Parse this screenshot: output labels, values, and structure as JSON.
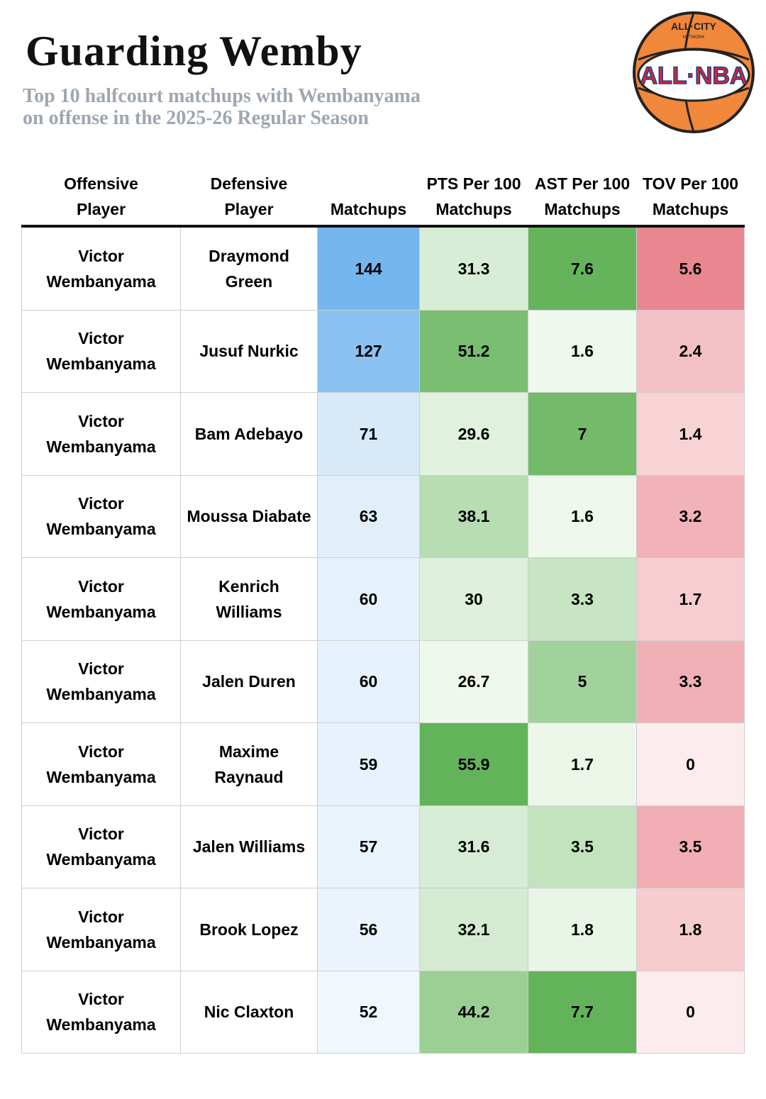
{
  "header": {
    "title": "Guarding Wemby",
    "subtitle": [
      "Top 10 halfcourt matchups with Wembanyama",
      "on offense in the 2025-26 Regular Season"
    ]
  },
  "logo": {
    "top": "ALL·CITY",
    "small": "NETWORK",
    "main": "ALL·NBA"
  },
  "table": {
    "columns": [
      [
        "Offensive",
        "Player"
      ],
      [
        "Defensive",
        "Player"
      ],
      [
        "Matchups"
      ],
      [
        "PTS Per 100",
        "Matchups"
      ],
      [
        "AST Per 100",
        "Matchups"
      ],
      [
        "TOV Per 100",
        "Matchups"
      ]
    ],
    "rows": [
      [
        "Victor Wembanyama",
        "Draymond Green",
        144,
        31.3,
        7.6,
        5.6
      ],
      [
        "Victor Wembanyama",
        "Jusuf Nurkic",
        127,
        51.2,
        1.6,
        2.4
      ],
      [
        "Victor Wembanyama",
        "Bam Adebayo",
        71,
        29.6,
        7,
        1.4
      ],
      [
        "Victor Wembanyama",
        "Moussa Diabate",
        63,
        38.1,
        1.6,
        3.2
      ],
      [
        "Victor Wembanyama",
        "Kenrich Williams",
        60,
        30,
        3.3,
        1.7
      ],
      [
        "Victor Wembanyama",
        "Jalen Duren",
        60,
        26.7,
        5,
        3.3
      ],
      [
        "Victor Wembanyama",
        "Maxime Raynaud",
        59,
        55.9,
        1.7,
        0
      ],
      [
        "Victor Wembanyama",
        "Jalen Williams",
        57,
        31.6,
        3.5,
        3.5
      ],
      [
        "Victor Wembanyama",
        "Brook Lopez",
        56,
        32.1,
        1.8,
        1.8
      ],
      [
        "Victor Wembanyama",
        "Nic Claxton",
        52,
        44.2,
        7.7,
        0
      ]
    ]
  }
}
